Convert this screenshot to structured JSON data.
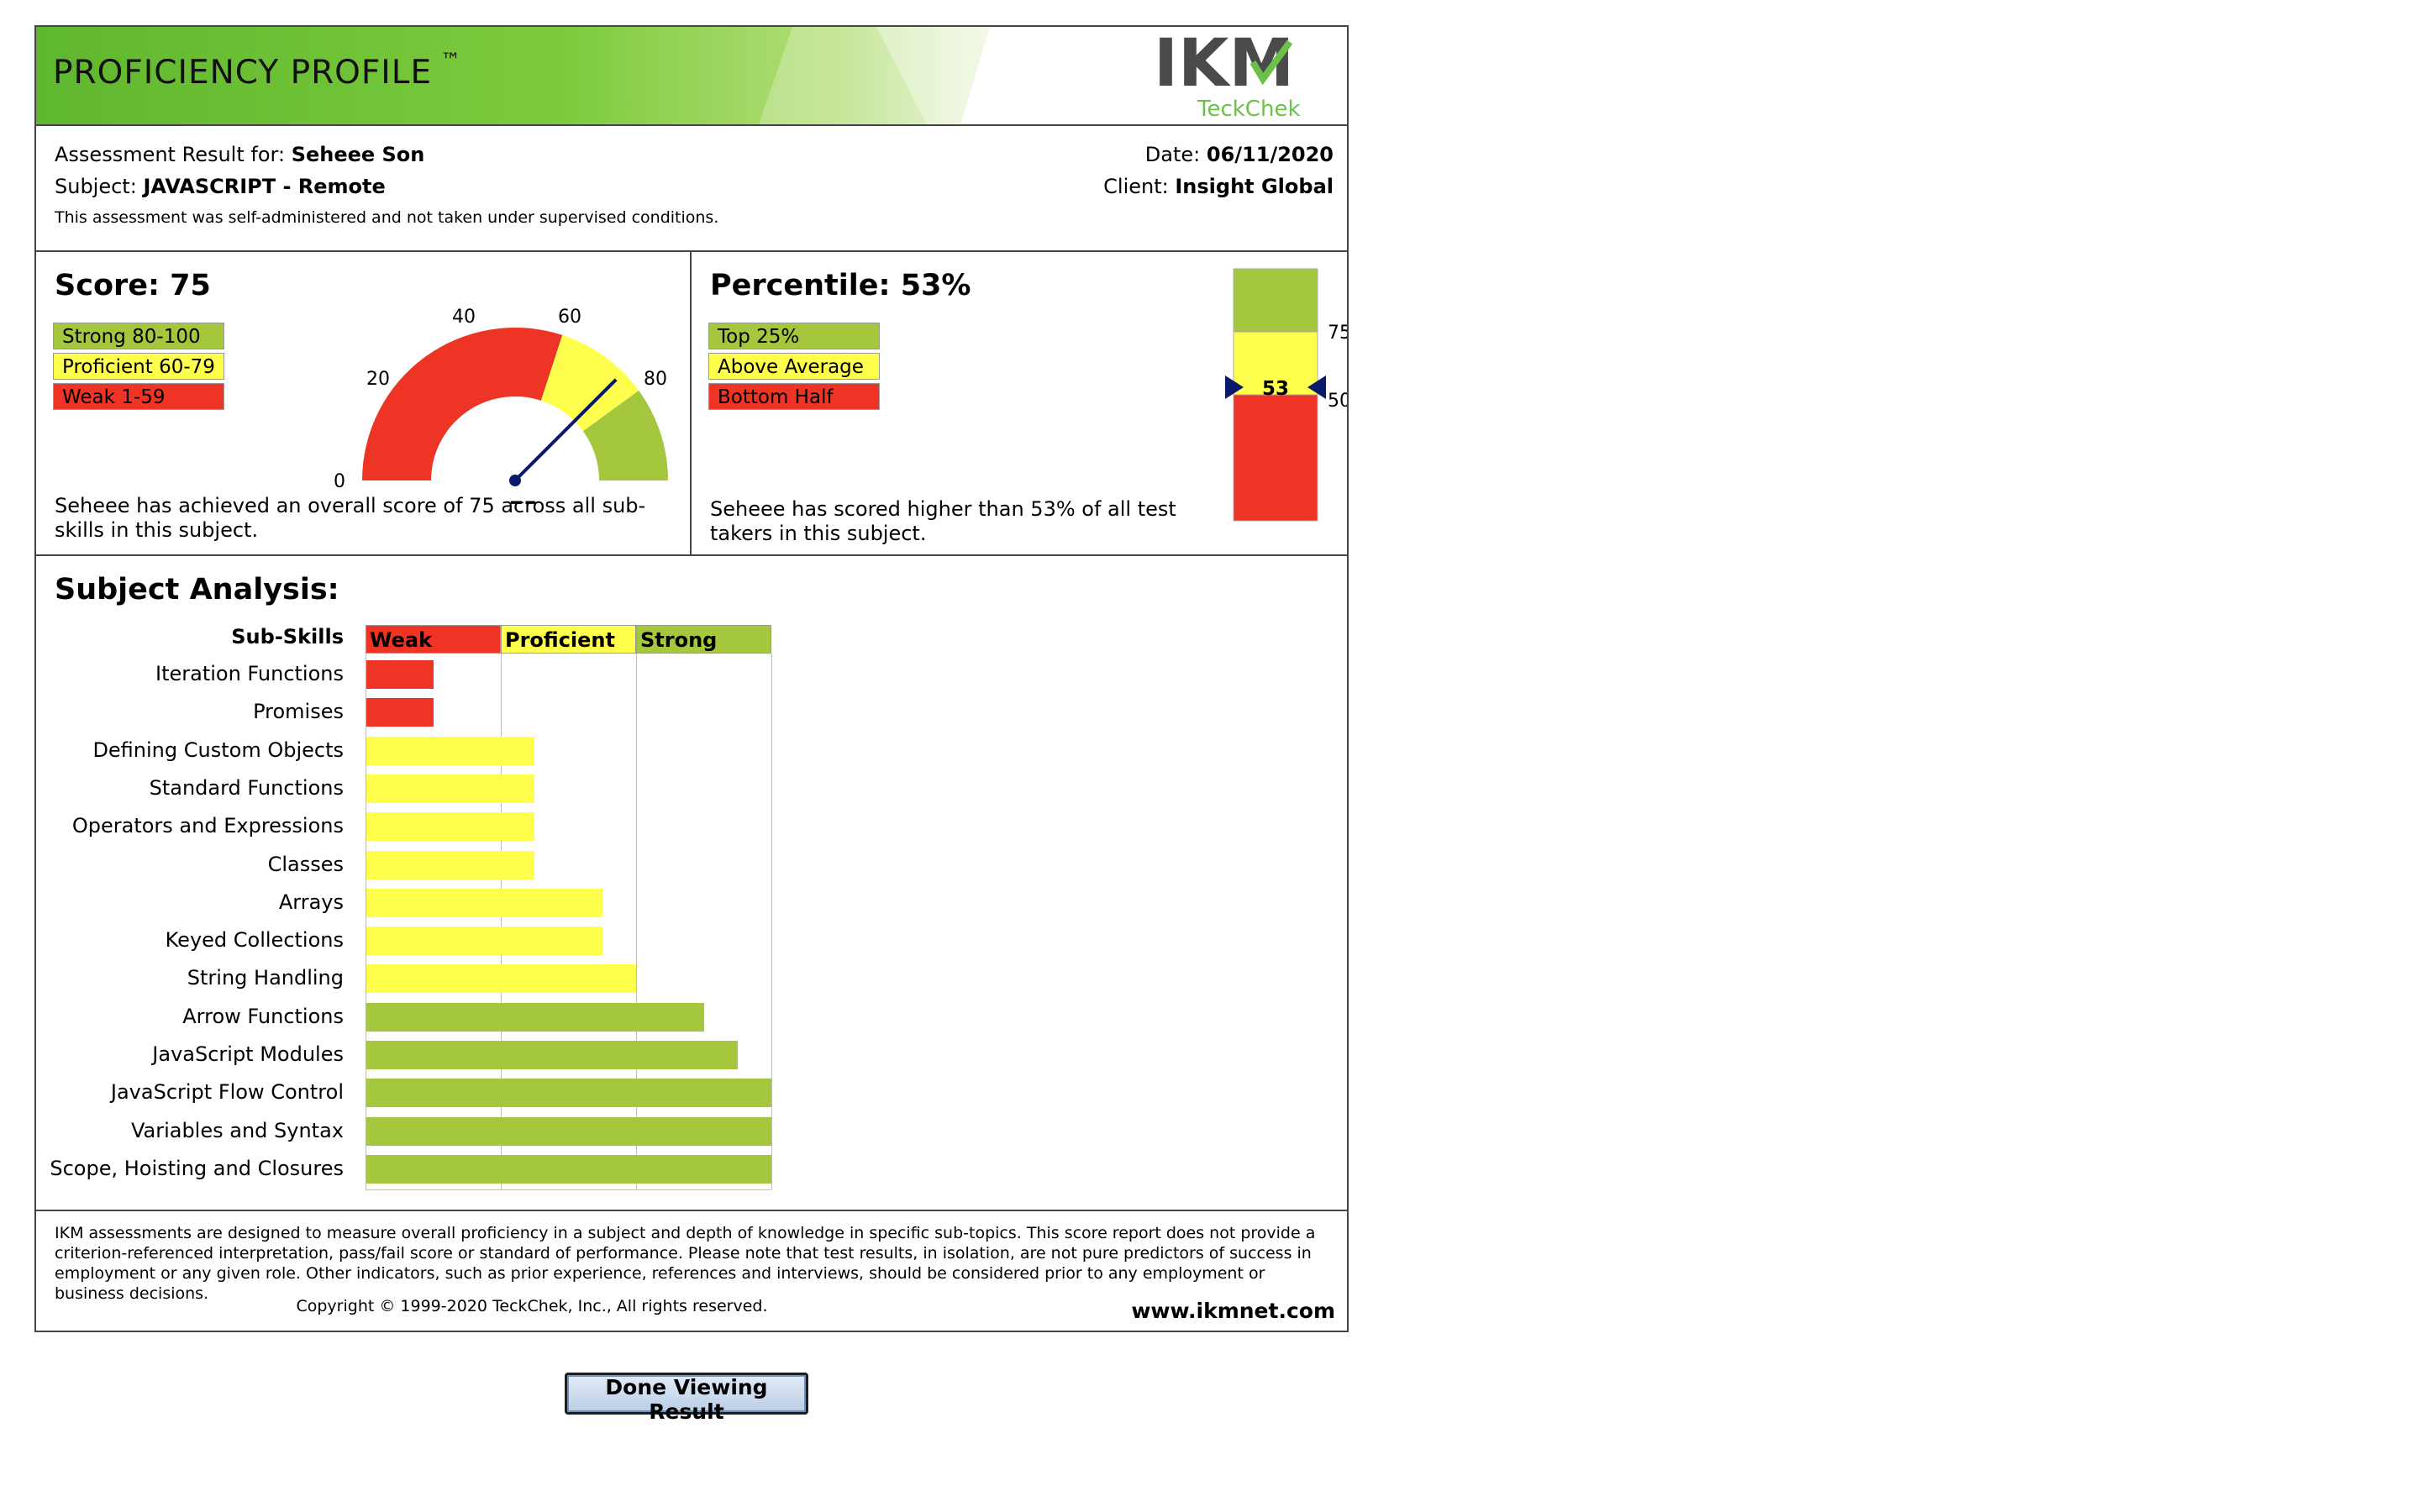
{
  "header": {
    "title": "PROFICIENCY PROFILE",
    "trademark": "™",
    "logo_main": "IKM",
    "logo_sub": "TeckChek"
  },
  "info": {
    "result_label": "Assessment Result for:",
    "candidate": "Seheee Son",
    "subject_label": "Subject:",
    "subject": "JAVASCRIPT - Remote",
    "disclaimer": "This assessment was self-administered and not taken under supervised conditions.",
    "date_label": "Date:",
    "date": "06/11/2020",
    "client_label": "Client:",
    "client": "Insight Global"
  },
  "score": {
    "heading": "Score: 75",
    "value": 75,
    "legend": [
      "Strong 80-100",
      "Proficient 60-79",
      "Weak 1-59"
    ],
    "gauge_ticks": [
      "0",
      "20",
      "40",
      "60",
      "80",
      "100"
    ],
    "value_label": "75",
    "description": "Seheee has achieved an overall score of 75 across all sub-skills in this subject."
  },
  "percentile": {
    "heading": "Percentile: 53%",
    "value": 53,
    "legend": [
      "Top 25%",
      "Above Average",
      "Bottom Half"
    ],
    "marker_label": "53",
    "tick_75": "75",
    "tick_50": "50",
    "description": "Seheee has scored higher than 53% of all test takers in this subject."
  },
  "analysis": {
    "heading": "Subject Analysis:",
    "subskills_header": "Sub-Skills",
    "bands": [
      "Weak",
      "Proficient",
      "Strong"
    ],
    "colors": {
      "weak": "#ee3424",
      "proficient": "#ffff4d",
      "strong": "#a4c73d"
    }
  },
  "chart_data": {
    "type": "bar",
    "orientation": "horizontal",
    "categories": [
      "Iteration Functions",
      "Promises",
      "Defining Custom Objects",
      "Standard Functions",
      "Operators and Expressions",
      "Classes",
      "Arrays",
      "Keyed Collections",
      "String Handling",
      "Arrow Functions",
      "JavaScript Modules",
      "JavaScript Flow Control",
      "Variables and Syntax",
      "Scope, Hoisting and Closures"
    ],
    "values": [
      0.5,
      0.5,
      1.25,
      1.25,
      1.25,
      1.25,
      1.75,
      1.75,
      2.0,
      2.5,
      2.75,
      3.0,
      3.0,
      3.0
    ],
    "xlim": [
      0,
      3
    ],
    "x_bands": [
      "Weak",
      "Proficient",
      "Strong"
    ],
    "bar_levels": [
      "weak",
      "weak",
      "proficient",
      "proficient",
      "proficient",
      "proficient",
      "proficient",
      "proficient",
      "proficient",
      "strong",
      "strong",
      "strong",
      "strong",
      "strong"
    ]
  },
  "footer": {
    "text": "IKM assessments are designed to measure overall proficiency in a subject and depth of knowledge in specific sub-topics. This score report does not provide a criterion-referenced interpretation, pass/fail score or standard of performance. Please note that test results, in isolation, are not pure predictors of success in employment or any given role. Other indicators, such as prior experience, references and interviews, should be considered prior to any employment or business decisions.",
    "copyright": "Copyright © 1999-2020 TeckChek, Inc., All rights reserved.",
    "website": "www.ikmnet.com"
  },
  "done_button": "Done Viewing Result"
}
